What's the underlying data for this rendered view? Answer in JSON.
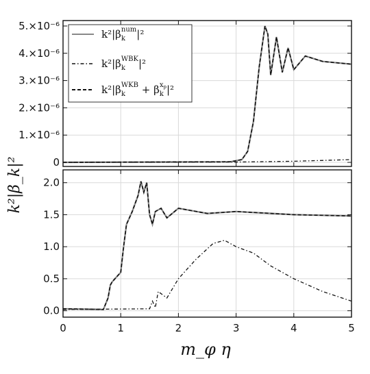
{
  "chart_data": {
    "type": "line",
    "xlabel": "m_φ η",
    "ylabel": "k²|β_k|²",
    "xlim": [
      0,
      5
    ],
    "x_ticks": [
      "0",
      "1",
      "2",
      "3",
      "4",
      "5"
    ],
    "grid": true,
    "panels": [
      {
        "name": "top",
        "ylim": [
          -1.5e-07,
          5.2e-06
        ],
        "y_ticks": [
          {
            "value": 5e-06,
            "label": "5.×10⁻⁶"
          },
          {
            "value": 4e-06,
            "label": "4.×10⁻⁶"
          },
          {
            "value": 3e-06,
            "label": "3.×10⁻⁶"
          },
          {
            "value": 2e-06,
            "label": "2.×10⁻⁶"
          },
          {
            "value": 1e-06,
            "label": "1.×10⁻⁶"
          },
          {
            "value": 0,
            "label": "0"
          }
        ],
        "legend_position": "top-left",
        "legend": [
          {
            "style": "solid",
            "label": "k²|β_k^num|²",
            "base": "k²|β",
            "sub": "k",
            "sup": "num",
            "tail": "|²"
          },
          {
            "style": "dash-dot",
            "label": "k²|β_k^WBK|²",
            "base": "k²|β",
            "sub": "k",
            "sup": "WBK",
            "tail": "|²"
          },
          {
            "style": "dashed",
            "label": "k²|β_k^WKB + β_k^xp|²",
            "base": "k²|β",
            "sub": "k",
            "sup": "WKB",
            "mid": " + β",
            "sub2": "k",
            "sup2": "x",
            "supsub2": "p",
            "tail": "|²"
          }
        ],
        "series": [
          {
            "style": "solid",
            "x": [
              0,
              2.9,
              3.1,
              3.2,
              3.3,
              3.4,
              3.5,
              3.55,
              3.6,
              3.7,
              3.8,
              3.9,
              4.0,
              4.2,
              4.5,
              5.0
            ],
            "y": [
              0,
              2e-08,
              1e-07,
              4e-07,
              1.5e-06,
              3.5e-06,
              5e-06,
              4.7e-06,
              3.2e-06,
              4.6e-06,
              3.3e-06,
              4.2e-06,
              3.4e-06,
              3.9e-06,
              3.7e-06,
              3.6e-06
            ]
          },
          {
            "style": "dash-dot",
            "x": [
              0,
              3.0,
              4.0,
              5.0
            ],
            "y": [
              0,
              1e-08,
              4e-08,
              1e-07
            ]
          },
          {
            "style": "dashed",
            "x": [
              0,
              2.9,
              3.1,
              3.2,
              3.3,
              3.4,
              3.5,
              3.55,
              3.6,
              3.7,
              3.8,
              3.9,
              4.0,
              4.2,
              4.5,
              5.0
            ],
            "y": [
              0,
              2e-08,
              1e-07,
              4e-07,
              1.5e-06,
              3.5e-06,
              5e-06,
              4.7e-06,
              3.2e-06,
              4.6e-06,
              3.3e-06,
              4.2e-06,
              3.4e-06,
              3.9e-06,
              3.7e-06,
              3.6e-06
            ]
          }
        ]
      },
      {
        "name": "bottom",
        "ylim": [
          -0.1,
          2.2
        ],
        "y_ticks": [
          {
            "value": 2.0,
            "label": "2.0"
          },
          {
            "value": 1.5,
            "label": "1.5"
          },
          {
            "value": 1.0,
            "label": "1.0"
          },
          {
            "value": 0.5,
            "label": "0.5"
          },
          {
            "value": 0.0,
            "label": "0.0"
          }
        ],
        "series": [
          {
            "style": "solid",
            "x": [
              0,
              0.7,
              0.78,
              0.82,
              0.85,
              0.9,
              1.0,
              1.05,
              1.1,
              1.2,
              1.3,
              1.35,
              1.4,
              1.45,
              1.5,
              1.55,
              1.6,
              1.7,
              1.8,
              2.0,
              2.5,
              3.0,
              4.0,
              5.0
            ],
            "y": [
              0.03,
              0.02,
              0.2,
              0.4,
              0.45,
              0.5,
              0.6,
              1.0,
              1.35,
              1.55,
              1.8,
              2.02,
              1.85,
              2.0,
              1.5,
              1.35,
              1.55,
              1.6,
              1.45,
              1.6,
              1.52,
              1.55,
              1.5,
              1.48
            ]
          },
          {
            "style": "dash-dot",
            "x": [
              0,
              1.5,
              1.55,
              1.6,
              1.65,
              1.8,
              2.0,
              2.3,
              2.6,
              2.8,
              3.0,
              3.3,
              3.6,
              4.0,
              4.5,
              5.0
            ],
            "y": [
              0.02,
              0.03,
              0.15,
              0.05,
              0.3,
              0.2,
              0.5,
              0.8,
              1.05,
              1.1,
              1.0,
              0.9,
              0.7,
              0.5,
              0.3,
              0.15
            ]
          },
          {
            "style": "dashed",
            "x": [
              0,
              0.7,
              0.78,
              0.82,
              0.85,
              0.9,
              1.0,
              1.05,
              1.1,
              1.2,
              1.3,
              1.35,
              1.4,
              1.45,
              1.5,
              1.55,
              1.6,
              1.7,
              1.8,
              2.0,
              2.5,
              3.0,
              4.0,
              5.0
            ],
            "y": [
              0.03,
              0.02,
              0.2,
              0.4,
              0.45,
              0.5,
              0.6,
              1.0,
              1.35,
              1.55,
              1.8,
              2.02,
              1.85,
              2.0,
              1.5,
              1.35,
              1.55,
              1.6,
              1.45,
              1.6,
              1.52,
              1.55,
              1.5,
              1.48
            ]
          }
        ]
      }
    ]
  }
}
